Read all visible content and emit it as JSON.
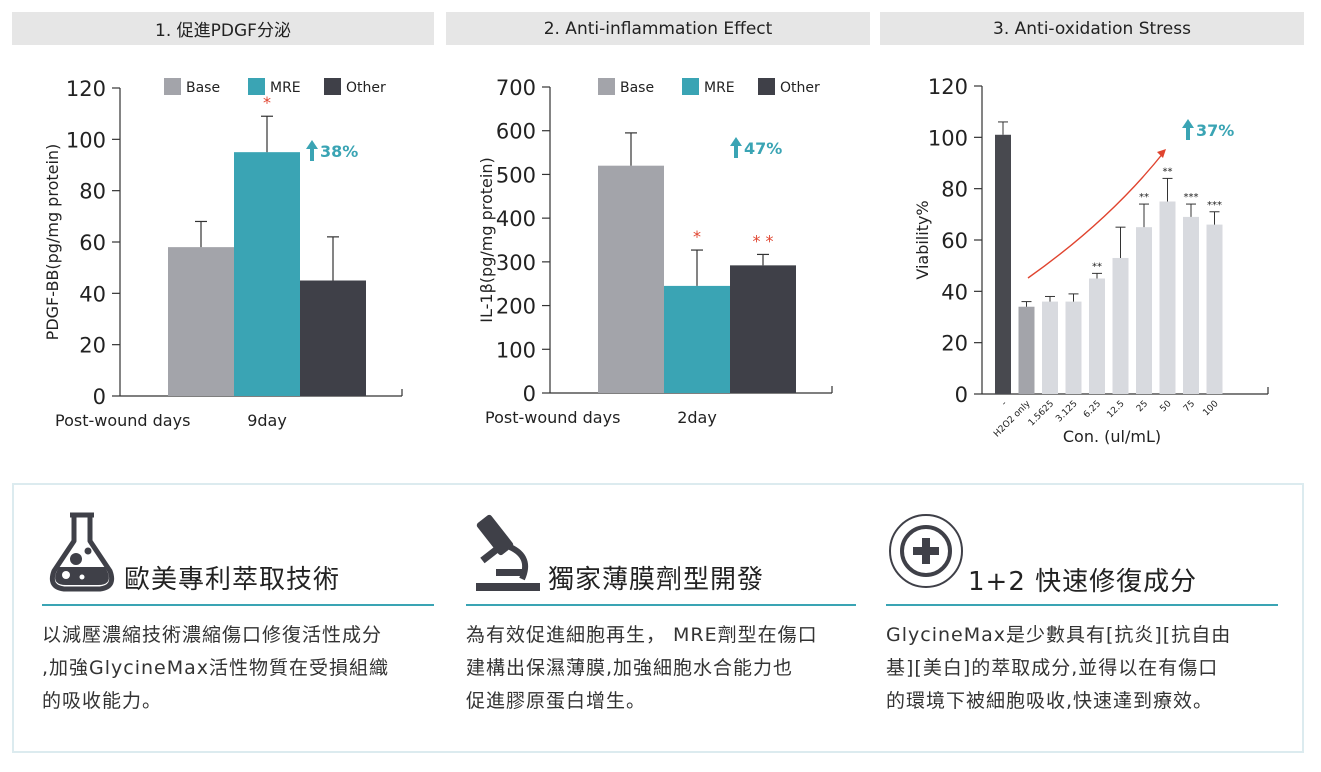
{
  "panels": [
    {
      "title": "1. 促進PDGF分泌"
    },
    {
      "title": "2. Anti-inflammation Effect"
    },
    {
      "title": "3. Anti-oxidation Stress"
    }
  ],
  "colors": {
    "base": "#a3a4aa",
    "mre": "#3aa4b4",
    "other": "#3f4048",
    "dark": "#48494f",
    "light": "#d8dadf",
    "arrow": "#e0442f",
    "accent": "#3aa4b4"
  },
  "chart_data": [
    {
      "type": "bar",
      "ylabel": "PDGF-BB(pg/mg protein)",
      "xlabel": "Post-wound days",
      "categories": [
        "9day"
      ],
      "ylim": [
        0,
        120
      ],
      "yticks": [
        0,
        20,
        40,
        60,
        80,
        100,
        120
      ],
      "legend": [
        "Base",
        "MRE",
        "Other"
      ],
      "legend_position": "top",
      "series": [
        {
          "name": "Base",
          "values": [
            58
          ],
          "error": [
            10
          ]
        },
        {
          "name": "MRE",
          "values": [
            95
          ],
          "error": [
            14
          ],
          "significance": "*"
        },
        {
          "name": "Other",
          "values": [
            45
          ],
          "error": [
            17
          ]
        }
      ],
      "annotation": "38%"
    },
    {
      "type": "bar",
      "ylabel": "IL-1β(pg/mg protein)",
      "xlabel": "Post-wound days",
      "categories": [
        "2day"
      ],
      "ylim": [
        0,
        700
      ],
      "yticks": [
        0,
        100,
        200,
        300,
        400,
        500,
        600,
        700
      ],
      "legend": [
        "Base",
        "MRE",
        "Other"
      ],
      "legend_position": "top",
      "series": [
        {
          "name": "Base",
          "values": [
            520
          ],
          "error": [
            75
          ]
        },
        {
          "name": "MRE",
          "values": [
            245
          ],
          "error": [
            82
          ],
          "significance": "*"
        },
        {
          "name": "Other",
          "values": [
            292
          ],
          "error": [
            25
          ],
          "significance": "* *"
        }
      ],
      "annotation": "47%"
    },
    {
      "type": "bar",
      "ylabel": "Viability%",
      "xlabel": "Con. (ul/mL)",
      "ylim": [
        0,
        120
      ],
      "yticks": [
        0,
        20,
        40,
        60,
        80,
        100,
        120
      ],
      "top_labels": [
        "-",
        "H2O2 only",
        "1.5625",
        "3.125",
        "6.25",
        "12.5",
        "25",
        "50",
        "75",
        "100"
      ],
      "values": [
        101,
        34,
        36,
        36,
        45,
        53,
        65,
        75,
        69,
        66
      ],
      "errors": [
        5,
        2,
        2,
        3,
        2,
        12,
        9,
        9,
        5,
        5
      ],
      "significance": [
        "",
        "",
        "",
        "",
        "**",
        "",
        "**",
        "**",
        "***",
        "***"
      ],
      "annotation": "37%"
    }
  ],
  "features": [
    {
      "title": "歐美專利萃取技術",
      "icon": "flask-icon",
      "lines": [
        "以減壓濃縮技術濃縮傷口修復活性成分",
        ",加強GlycineMax活性物質在受損組織",
        "的吸收能力。"
      ]
    },
    {
      "title": "獨家薄膜劑型開發",
      "icon": "microscope-icon",
      "lines": [
        "為有效促進細胞再生， MRE劑型在傷口",
        "建構出保濕薄膜,加強細胞水合能力也",
        "促進膠原蛋白增生。"
      ]
    },
    {
      "title": "1+2 快速修復成分",
      "icon": "plus-circle-icon",
      "lines": [
        "GlycineMax是少數具有[抗炎][抗自由",
        "基][美白]的萃取成分,並得以在有傷口",
        "的環境下被細胞吸收,快速達到療效。"
      ]
    }
  ]
}
